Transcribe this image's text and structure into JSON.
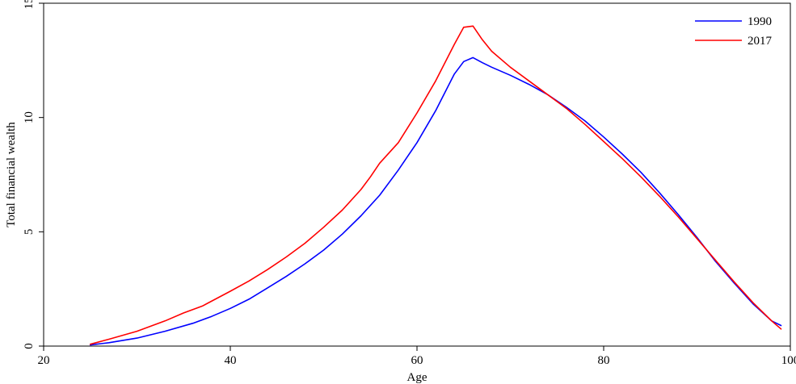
{
  "chart_data": {
    "type": "line",
    "title": "",
    "xlabel": "Age",
    "ylabel": "Total financial wealth",
    "xlim": [
      20,
      100
    ],
    "ylim": [
      0,
      15
    ],
    "xticks": [
      20,
      40,
      60,
      80,
      100
    ],
    "yticks": [
      0,
      5,
      10,
      15
    ],
    "grid": false,
    "legend_position": "top-right",
    "series": [
      {
        "name": "1990",
        "color": "#0000ff",
        "x": [
          25,
          27,
          30,
          33,
          36,
          38,
          40,
          42,
          44,
          46,
          48,
          50,
          52,
          54,
          56,
          58,
          60,
          62,
          64,
          65,
          66,
          67,
          68,
          70,
          72,
          74,
          76,
          78,
          80,
          82,
          84,
          86,
          88,
          90,
          92,
          94,
          96,
          98,
          99
        ],
        "values": [
          0.05,
          0.15,
          0.35,
          0.65,
          1.0,
          1.3,
          1.65,
          2.05,
          2.55,
          3.05,
          3.6,
          4.2,
          4.9,
          5.7,
          6.6,
          7.7,
          8.9,
          10.3,
          11.9,
          12.45,
          12.62,
          12.4,
          12.2,
          11.85,
          11.45,
          11.0,
          10.45,
          9.85,
          9.15,
          8.4,
          7.6,
          6.7,
          5.75,
          4.75,
          3.7,
          2.75,
          1.85,
          1.1,
          0.9
        ]
      },
      {
        "name": "2017",
        "color": "#ff0000",
        "x": [
          25,
          27,
          30,
          33,
          35,
          37,
          40,
          42,
          44,
          46,
          48,
          50,
          52,
          54,
          55,
          56,
          58,
          60,
          62,
          64,
          65,
          66,
          67,
          68,
          70,
          72,
          74,
          76,
          78,
          80,
          82,
          84,
          86,
          88,
          90,
          92,
          94,
          96,
          98,
          99
        ],
        "values": [
          0.08,
          0.3,
          0.65,
          1.1,
          1.45,
          1.75,
          2.4,
          2.85,
          3.35,
          3.9,
          4.5,
          5.2,
          5.95,
          6.85,
          7.4,
          8.0,
          8.9,
          10.2,
          11.6,
          13.2,
          13.95,
          14.0,
          13.4,
          12.9,
          12.2,
          11.6,
          11.0,
          10.4,
          9.7,
          8.95,
          8.2,
          7.4,
          6.55,
          5.65,
          4.7,
          3.75,
          2.8,
          1.9,
          1.1,
          0.75
        ]
      }
    ]
  }
}
